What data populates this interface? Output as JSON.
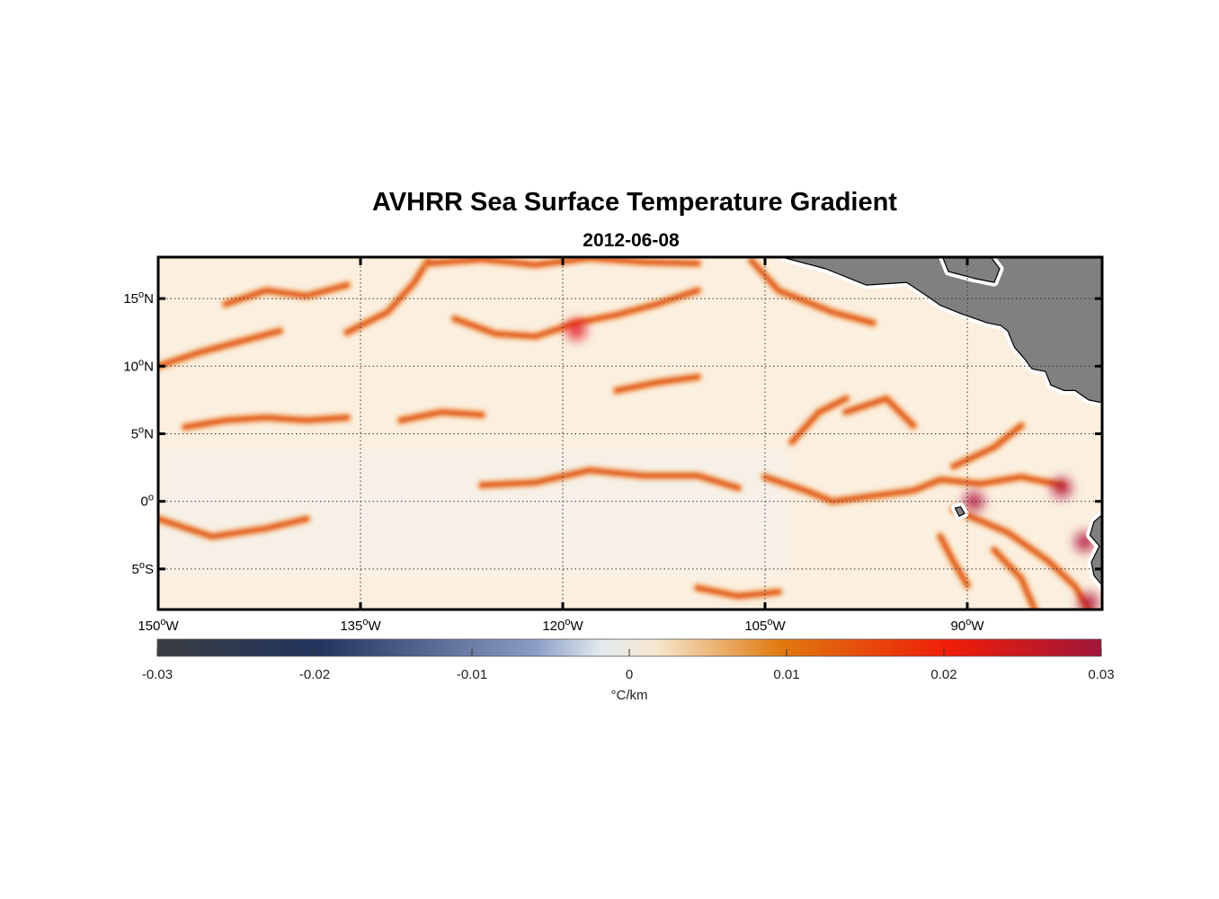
{
  "chart_data": {
    "type": "heatmap",
    "title": "AVHRR Sea Surface Temperature Gradient",
    "subtitle": "2012-06-08",
    "xlim": [
      -150,
      -80
    ],
    "ylim": [
      -8,
      18
    ],
    "x_ticks": [
      {
        "value": -150,
        "label": "150",
        "sup": "o",
        "hemi": "W"
      },
      {
        "value": -135,
        "label": "135",
        "sup": "o",
        "hemi": "W"
      },
      {
        "value": -120,
        "label": "120",
        "sup": "o",
        "hemi": "W"
      },
      {
        "value": -105,
        "label": "105",
        "sup": "o",
        "hemi": "W"
      },
      {
        "value": -90,
        "label": "90",
        "sup": "o",
        "hemi": "W"
      }
    ],
    "y_ticks": [
      {
        "value": 15,
        "label": "15",
        "sup": "o",
        "hemi": "N"
      },
      {
        "value": 10,
        "label": "10",
        "sup": "o",
        "hemi": "N"
      },
      {
        "value": 5,
        "label": "5",
        "sup": "o",
        "hemi": "N"
      },
      {
        "value": 0,
        "label": "0",
        "sup": "o",
        "hemi": ""
      },
      {
        "value": -5,
        "label": "5",
        "sup": "o",
        "hemi": "S"
      }
    ],
    "grid": true,
    "colorbar": {
      "min": -0.03,
      "max": 0.03,
      "ticks": [
        {
          "value": -0.03,
          "label": "-0.03"
        },
        {
          "value": -0.02,
          "label": "-0.02"
        },
        {
          "value": -0.01,
          "label": "-0.01"
        },
        {
          "value": 0,
          "label": "0"
        },
        {
          "value": 0.01,
          "label": "0.01"
        },
        {
          "value": 0.02,
          "label": "0.02"
        },
        {
          "value": 0.03,
          "label": "0.03"
        }
      ],
      "label": "°C/km",
      "colors": [
        "#3a3d42",
        "#22345e",
        "#8a9cc4",
        "#eef2ee",
        "#f6e6cc",
        "#e07a10",
        "#f01c08",
        "#a0163a"
      ]
    },
    "land_color": "#808080",
    "fronts": [
      [
        [
          -150,
          10.0
        ],
        [
          -147,
          11.0
        ],
        [
          -144,
          11.8
        ],
        [
          -141,
          12.6
        ]
      ],
      [
        [
          -145,
          14.6
        ],
        [
          -142,
          15.6
        ],
        [
          -139,
          15.2
        ],
        [
          -136,
          16.0
        ]
      ],
      [
        [
          -136,
          12.5
        ],
        [
          -133,
          14.0
        ],
        [
          -131,
          16.2
        ],
        [
          -130,
          17.8
        ]
      ],
      [
        [
          -128,
          13.5
        ],
        [
          -125,
          12.4
        ],
        [
          -122,
          12.2
        ],
        [
          -119,
          13.2
        ],
        [
          -116,
          13.8
        ],
        [
          -113,
          14.6
        ],
        [
          -110,
          15.6
        ]
      ],
      [
        [
          -130,
          17.6
        ],
        [
          -126,
          17.9
        ],
        [
          -122,
          17.5
        ],
        [
          -118,
          18.0
        ],
        [
          -114,
          17.7
        ],
        [
          -110,
          17.6
        ]
      ],
      [
        [
          -106,
          17.8
        ],
        [
          -104,
          15.6
        ],
        [
          -100,
          14.0
        ],
        [
          -97,
          13.2
        ]
      ],
      [
        [
          -126,
          1.2
        ],
        [
          -122,
          1.4
        ],
        [
          -118,
          2.3
        ],
        [
          -114,
          1.9
        ],
        [
          -110,
          1.9
        ],
        [
          -107,
          1.0
        ]
      ],
      [
        [
          -105,
          1.8
        ],
        [
          -102,
          0.8
        ],
        [
          -100,
          0.0
        ],
        [
          -97,
          0.4
        ],
        [
          -94,
          0.8
        ],
        [
          -92,
          1.6
        ],
        [
          -89,
          1.3
        ],
        [
          -86,
          1.8
        ],
        [
          -83,
          1.2
        ]
      ],
      [
        [
          -91,
          2.6
        ],
        [
          -88,
          4.0
        ],
        [
          -86,
          5.6
        ]
      ],
      [
        [
          -91,
          -0.6
        ],
        [
          -87,
          -2.3
        ],
        [
          -84,
          -4.4
        ],
        [
          -82,
          -6.3
        ],
        [
          -81,
          -8.0
        ]
      ],
      [
        [
          -92,
          -2.6
        ],
        [
          -91,
          -4.5
        ],
        [
          -90,
          -6.2
        ]
      ],
      [
        [
          -88,
          -3.6
        ],
        [
          -86,
          -5.7
        ],
        [
          -85,
          -8.0
        ]
      ],
      [
        [
          -99,
          6.6
        ],
        [
          -96,
          7.6
        ],
        [
          -94,
          5.6
        ]
      ],
      [
        [
          -103,
          4.4
        ],
        [
          -101,
          6.6
        ],
        [
          -99,
          7.6
        ]
      ],
      [
        [
          -148,
          5.5
        ],
        [
          -145,
          6.0
        ],
        [
          -142,
          6.2
        ],
        [
          -139,
          6.0
        ],
        [
          -136,
          6.2
        ]
      ],
      [
        [
          -132,
          6.0
        ],
        [
          -129,
          6.6
        ],
        [
          -126,
          6.4
        ]
      ],
      [
        [
          -116,
          8.2
        ],
        [
          -113,
          8.8
        ],
        [
          -110,
          9.2
        ]
      ],
      [
        [
          -110,
          -6.4
        ],
        [
          -107,
          -7.0
        ],
        [
          -104,
          -6.7
        ]
      ],
      [
        [
          -150,
          -1.3
        ],
        [
          -146,
          -2.6
        ],
        [
          -142,
          -2.0
        ],
        [
          -139,
          -1.3
        ]
      ]
    ],
    "hotspots": [
      {
        "lon": -83.0,
        "lat": 1.0,
        "value": 0.028
      },
      {
        "lon": -89.5,
        "lat": 0.0,
        "value": 0.029
      },
      {
        "lon": -81.3,
        "lat": -3.0,
        "value": 0.03
      },
      {
        "lon": -81.0,
        "lat": -7.5,
        "value": 0.03
      },
      {
        "lon": -119.0,
        "lat": 12.7,
        "value": 0.02
      }
    ],
    "land": [
      [
        [
          -103.5,
          18
        ],
        [
          -100.5,
          17.2
        ],
        [
          -97.5,
          16.0
        ],
        [
          -94.5,
          16.2
        ],
        [
          -93,
          15.2
        ],
        [
          -92,
          14.5
        ],
        [
          -90.5,
          13.9
        ],
        [
          -88.5,
          13.2
        ],
        [
          -87.5,
          13.0
        ],
        [
          -87,
          12.6
        ],
        [
          -86.5,
          11.4
        ],
        [
          -85.8,
          10.6
        ],
        [
          -85.2,
          9.8
        ],
        [
          -84.2,
          9.6
        ],
        [
          -83.8,
          8.6
        ],
        [
          -82.8,
          8.2
        ],
        [
          -82,
          8.2
        ],
        [
          -81.0,
          7.5
        ],
        [
          -80,
          7.3
        ],
        [
          -80,
          18
        ]
      ],
      [
        [
          -91.8,
          18
        ],
        [
          -91.4,
          17.0
        ],
        [
          -89.5,
          16.5
        ],
        [
          -88.0,
          16.2
        ],
        [
          -87.6,
          17.2
        ],
        [
          -88.2,
          18
        ]
      ],
      [
        [
          -80,
          -1.0
        ],
        [
          -80.6,
          -1.5
        ],
        [
          -80.9,
          -2.5
        ],
        [
          -80.2,
          -3.3
        ],
        [
          -80.8,
          -4.5
        ],
        [
          -80.6,
          -5.5
        ],
        [
          -80,
          -6.2
        ]
      ],
      [
        [
          -90.9,
          -0.5
        ],
        [
          -90.5,
          -0.4
        ],
        [
          -90.2,
          -0.9
        ],
        [
          -90.6,
          -1.1
        ]
      ]
    ]
  }
}
